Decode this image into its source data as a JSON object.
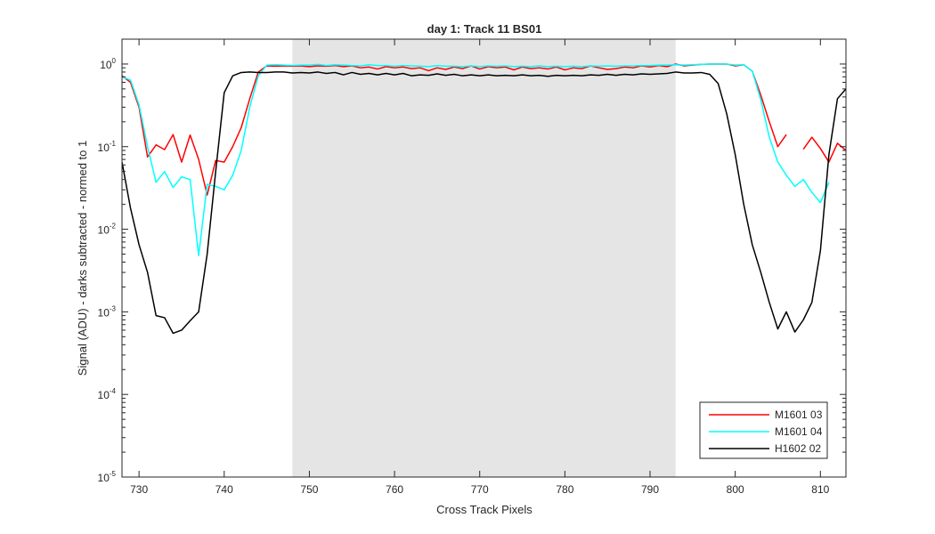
{
  "chart_data": {
    "type": "line",
    "title": "day 1: Track 11  BS01",
    "xlabel": "Cross Track Pixels",
    "ylabel": "Signal (ADU) - darks subtracted - normed to 1",
    "xlim": [
      728,
      813
    ],
    "ylim": [
      1e-05,
      2
    ],
    "yscale": "log",
    "grid": false,
    "legend_position": "bottom-right",
    "x_ticks": [
      {
        "value": 730,
        "label": "730"
      },
      {
        "value": 740,
        "label": "740"
      },
      {
        "value": 750,
        "label": "750"
      },
      {
        "value": 760,
        "label": "760"
      },
      {
        "value": 770,
        "label": "770"
      },
      {
        "value": 780,
        "label": "780"
      },
      {
        "value": 790,
        "label": "790"
      },
      {
        "value": 800,
        "label": "800"
      },
      {
        "value": 810,
        "label": "810"
      }
    ],
    "y_ticks": [
      {
        "value": 1e-05,
        "base": "10",
        "exp": "-5"
      },
      {
        "value": 0.0001,
        "base": "10",
        "exp": "-4"
      },
      {
        "value": 0.001,
        "base": "10",
        "exp": "-3"
      },
      {
        "value": 0.01,
        "base": "10",
        "exp": "-2"
      },
      {
        "value": 0.1,
        "base": "10",
        "exp": "-1"
      },
      {
        "value": 1,
        "base": "10",
        "exp": "0"
      }
    ],
    "shaded_region": {
      "x_start": 748,
      "x_end": 793,
      "color": "#e5e5e5"
    },
    "series": [
      {
        "name": "M1601 03",
        "color": "#ff0000",
        "points": [
          [
            728,
            0.72
          ],
          [
            729,
            0.6
          ],
          [
            730,
            0.3
          ],
          [
            731,
            0.075
          ],
          [
            732,
            0.105
          ],
          [
            733,
            0.092
          ],
          [
            734,
            0.14
          ],
          [
            735,
            0.065
          ],
          [
            736,
            0.138
          ],
          [
            737,
            0.07
          ],
          [
            738,
            0.026
          ],
          [
            739,
            0.068
          ],
          [
            740,
            0.065
          ],
          [
            741,
            0.1
          ],
          [
            742,
            0.17
          ],
          [
            743,
            0.38
          ],
          [
            744,
            0.8
          ],
          [
            745,
            0.95
          ],
          [
            746,
            0.94
          ],
          [
            747,
            0.95
          ],
          [
            748,
            0.94
          ],
          [
            749,
            0.95
          ],
          [
            750,
            0.93
          ],
          [
            751,
            0.95
          ],
          [
            752,
            0.94
          ],
          [
            753,
            0.96
          ],
          [
            754,
            0.93
          ],
          [
            755,
            0.95
          ],
          [
            756,
            0.9
          ],
          [
            757,
            0.92
          ],
          [
            758,
            0.87
          ],
          [
            759,
            0.93
          ],
          [
            760,
            0.9
          ],
          [
            761,
            0.92
          ],
          [
            762,
            0.88
          ],
          [
            763,
            0.9
          ],
          [
            764,
            0.83
          ],
          [
            765,
            0.9
          ],
          [
            766,
            0.86
          ],
          [
            767,
            0.92
          ],
          [
            768,
            0.88
          ],
          [
            769,
            0.95
          ],
          [
            770,
            0.87
          ],
          [
            771,
            0.93
          ],
          [
            772,
            0.9
          ],
          [
            773,
            0.92
          ],
          [
            774,
            0.85
          ],
          [
            775,
            0.92
          ],
          [
            776,
            0.88
          ],
          [
            777,
            0.9
          ],
          [
            778,
            0.87
          ],
          [
            779,
            0.92
          ],
          [
            780,
            0.85
          ],
          [
            781,
            0.9
          ],
          [
            782,
            0.88
          ],
          [
            783,
            0.95
          ],
          [
            784,
            0.9
          ],
          [
            785,
            0.86
          ],
          [
            786,
            0.88
          ],
          [
            787,
            0.92
          ],
          [
            788,
            0.9
          ],
          [
            789,
            0.95
          ],
          [
            790,
            0.92
          ],
          [
            791,
            0.96
          ],
          [
            792,
            0.93
          ],
          [
            793,
            1.0
          ],
          [
            794,
            0.95
          ],
          [
            795,
            0.97
          ],
          [
            796,
            0.99
          ],
          [
            797,
            1.0
          ],
          [
            798,
            1.0
          ],
          [
            799,
            1.0
          ],
          [
            800,
            0.95
          ],
          [
            801,
            0.98
          ],
          [
            802,
            0.82
          ],
          [
            803,
            0.42
          ],
          [
            804,
            0.2
          ],
          [
            805,
            0.1
          ],
          [
            806,
            0.14
          ],
          null,
          [
            808,
            0.093
          ],
          [
            809,
            0.13
          ],
          [
            810,
            0.095
          ],
          [
            811,
            0.065
          ],
          [
            812,
            0.11
          ],
          [
            813,
            0.09
          ]
        ]
      },
      {
        "name": "M1601 04",
        "color": "#00ffff",
        "points": [
          [
            728,
            0.7
          ],
          [
            729,
            0.64
          ],
          [
            730,
            0.32
          ],
          [
            731,
            0.1
          ],
          [
            732,
            0.037
          ],
          [
            733,
            0.05
          ],
          [
            734,
            0.032
          ],
          [
            735,
            0.043
          ],
          [
            736,
            0.04
          ],
          [
            737,
            0.0048
          ],
          [
            738,
            0.035
          ],
          [
            739,
            0.033
          ],
          [
            740,
            0.03
          ],
          [
            741,
            0.045
          ],
          [
            742,
            0.09
          ],
          [
            743,
            0.3
          ],
          [
            744,
            0.72
          ],
          [
            745,
            0.97
          ],
          [
            746,
            0.98
          ],
          [
            747,
            0.97
          ],
          [
            748,
            0.96
          ],
          [
            749,
            0.97
          ],
          [
            750,
            0.97
          ],
          [
            751,
            0.99
          ],
          [
            752,
            0.96
          ],
          [
            753,
            0.98
          ],
          [
            754,
            0.97
          ],
          [
            755,
            0.96
          ],
          [
            756,
            0.95
          ],
          [
            757,
            0.98
          ],
          [
            758,
            0.96
          ],
          [
            759,
            0.96
          ],
          [
            760,
            0.94
          ],
          [
            761,
            0.96
          ],
          [
            762,
            0.95
          ],
          [
            763,
            0.94
          ],
          [
            764,
            0.93
          ],
          [
            765,
            0.96
          ],
          [
            766,
            0.94
          ],
          [
            767,
            0.94
          ],
          [
            768,
            0.93
          ],
          [
            769,
            0.95
          ],
          [
            770,
            0.93
          ],
          [
            771,
            0.95
          ],
          [
            772,
            0.94
          ],
          [
            773,
            0.95
          ],
          [
            774,
            0.93
          ],
          [
            775,
            0.94
          ],
          [
            776,
            0.93
          ],
          [
            777,
            0.95
          ],
          [
            778,
            0.93
          ],
          [
            779,
            0.94
          ],
          [
            780,
            0.93
          ],
          [
            781,
            0.94
          ],
          [
            782,
            0.93
          ],
          [
            783,
            0.95
          ],
          [
            784,
            0.94
          ],
          [
            785,
            0.95
          ],
          [
            786,
            0.94
          ],
          [
            787,
            0.95
          ],
          [
            788,
            0.95
          ],
          [
            789,
            0.96
          ],
          [
            790,
            0.96
          ],
          [
            791,
            0.97
          ],
          [
            792,
            0.97
          ],
          [
            793,
            0.98
          ],
          [
            794,
            0.97
          ],
          [
            795,
            0.98
          ],
          [
            796,
            0.99
          ],
          [
            797,
            1.0
          ],
          [
            798,
            1.0
          ],
          [
            799,
            1.0
          ],
          [
            800,
            0.97
          ],
          [
            801,
            0.98
          ],
          [
            802,
            0.82
          ],
          [
            803,
            0.37
          ],
          [
            804,
            0.13
          ],
          [
            805,
            0.065
          ],
          [
            806,
            0.045
          ],
          [
            807,
            0.033
          ],
          [
            808,
            0.04
          ],
          [
            809,
            0.028
          ],
          [
            810,
            0.021
          ],
          [
            811,
            0.037
          ]
        ]
      },
      {
        "name": "H1602 02",
        "color": "#000000",
        "points": [
          [
            728,
            0.065
          ],
          [
            729,
            0.018
          ],
          [
            730,
            0.0065
          ],
          [
            731,
            0.003
          ],
          [
            732,
            0.0009
          ],
          [
            733,
            0.00085
          ],
          [
            734,
            0.00055
          ],
          [
            735,
            0.0006
          ],
          [
            736,
            0.00078
          ],
          [
            737,
            0.001
          ],
          [
            738,
            0.005
          ],
          [
            739,
            0.05
          ],
          [
            740,
            0.45
          ],
          [
            741,
            0.72
          ],
          [
            742,
            0.79
          ],
          [
            743,
            0.8
          ],
          [
            744,
            0.79
          ],
          [
            745,
            0.79
          ],
          [
            746,
            0.8
          ],
          [
            747,
            0.8
          ],
          [
            748,
            0.78
          ],
          [
            749,
            0.79
          ],
          [
            750,
            0.78
          ],
          [
            751,
            0.8
          ],
          [
            752,
            0.77
          ],
          [
            753,
            0.79
          ],
          [
            754,
            0.74
          ],
          [
            755,
            0.79
          ],
          [
            756,
            0.75
          ],
          [
            757,
            0.77
          ],
          [
            758,
            0.74
          ],
          [
            759,
            0.77
          ],
          [
            760,
            0.74
          ],
          [
            761,
            0.77
          ],
          [
            762,
            0.72
          ],
          [
            763,
            0.74
          ],
          [
            764,
            0.73
          ],
          [
            765,
            0.76
          ],
          [
            766,
            0.73
          ],
          [
            767,
            0.75
          ],
          [
            768,
            0.72
          ],
          [
            769,
            0.74
          ],
          [
            770,
            0.72
          ],
          [
            771,
            0.74
          ],
          [
            772,
            0.72
          ],
          [
            773,
            0.73
          ],
          [
            774,
            0.72
          ],
          [
            775,
            0.74
          ],
          [
            776,
            0.72
          ],
          [
            777,
            0.73
          ],
          [
            778,
            0.71
          ],
          [
            779,
            0.73
          ],
          [
            780,
            0.72
          ],
          [
            781,
            0.73
          ],
          [
            782,
            0.72
          ],
          [
            783,
            0.74
          ],
          [
            784,
            0.73
          ],
          [
            785,
            0.75
          ],
          [
            786,
            0.73
          ],
          [
            787,
            0.75
          ],
          [
            788,
            0.74
          ],
          [
            789,
            0.76
          ],
          [
            790,
            0.75
          ],
          [
            791,
            0.76
          ],
          [
            792,
            0.77
          ],
          [
            793,
            0.8
          ],
          [
            794,
            0.78
          ],
          [
            795,
            0.78
          ],
          [
            796,
            0.79
          ],
          [
            797,
            0.75
          ],
          [
            798,
            0.58
          ],
          [
            799,
            0.25
          ],
          [
            800,
            0.08
          ],
          [
            801,
            0.02
          ],
          [
            802,
            0.0065
          ],
          [
            803,
            0.003
          ],
          [
            804,
            0.0013
          ],
          [
            805,
            0.00062
          ],
          [
            806,
            0.001
          ],
          [
            807,
            0.00057
          ],
          [
            808,
            0.0008
          ],
          [
            809,
            0.0013
          ],
          [
            810,
            0.0055
          ],
          [
            811,
            0.08
          ],
          [
            812,
            0.38
          ],
          [
            813,
            0.5
          ]
        ]
      }
    ]
  }
}
